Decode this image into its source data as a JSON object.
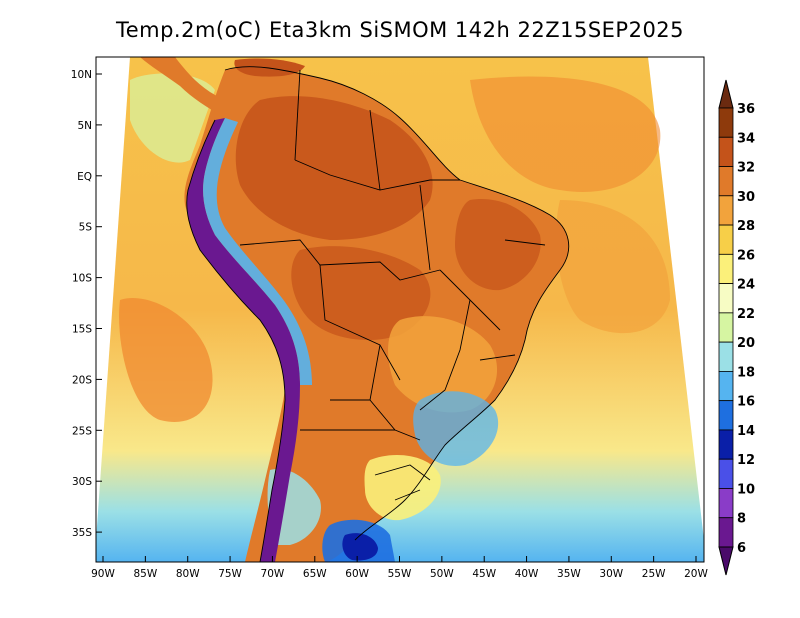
{
  "title": "Temp.2m(oC) Eta3km SiSMOM 142h 22Z15SEP2025",
  "lat_ticks": [
    "10N",
    "5N",
    "EQ",
    "5S",
    "10S",
    "15S",
    "20S",
    "25S",
    "30S",
    "35S"
  ],
  "lon_ticks": [
    "90W",
    "85W",
    "80W",
    "75W",
    "70W",
    "65W",
    "60W",
    "55W",
    "50W",
    "45W",
    "40W",
    "35W",
    "30W",
    "25W",
    "20W"
  ],
  "colorbar": {
    "labels": [
      "36",
      "34",
      "32",
      "30",
      "28",
      "26",
      "24",
      "22",
      "20",
      "18",
      "16",
      "14",
      "12",
      "10",
      "8",
      "6"
    ],
    "colors": [
      "#6b2a10",
      "#8e3a0c",
      "#c4531a",
      "#e07a2a",
      "#f2a33c",
      "#f7cf48",
      "#fbf07a",
      "#f7fcc4",
      "#d6f5a2",
      "#9be0e6",
      "#55b4f0",
      "#1e6fe0",
      "#0a1fa8",
      "#4a50e8",
      "#8a3cc8",
      "#6a1890",
      "#4a0a6a"
    ],
    "range": [
      6,
      36
    ]
  },
  "legend_colors": {
    "land_hot": "#d9641e",
    "ocean_warm": "#f6b84a"
  }
}
